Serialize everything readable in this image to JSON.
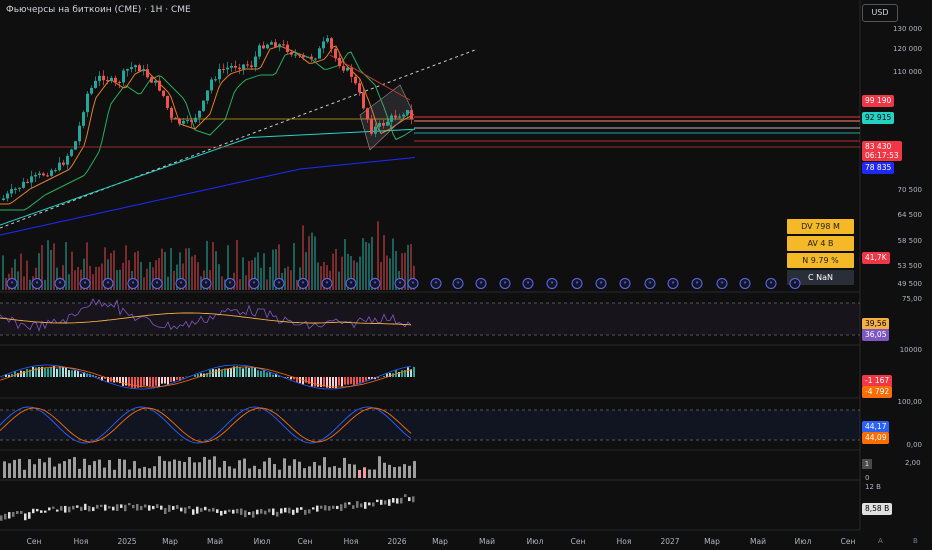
{
  "header": {
    "title": "Фьючерсы на биткоин (CME) · 1H · CME",
    "currency": "USD"
  },
  "price_axis": {
    "ticks": [
      "130 000",
      "120 000",
      "110 000",
      "78 835",
      "70 500",
      "64 500",
      "58 500",
      "53 500",
      "49 500"
    ],
    "labels": [
      {
        "text": "99 190",
        "color": "#f23645"
      },
      {
        "text": "92 915",
        "color": "#22d3c5"
      },
      {
        "text": "83 430",
        "sub": "06:17:53",
        "color": "#f23645"
      },
      {
        "text": "78 835",
        "color": "#1e2aff"
      },
      {
        "text": "41,7K",
        "color": "#f23645"
      }
    ]
  },
  "stats": [
    {
      "text": "DV 798 M"
    },
    {
      "text": "AV 4 B"
    },
    {
      "text": "N 9.79 %"
    },
    {
      "text": "C  NaN"
    }
  ],
  "panes": {
    "rsi": {
      "tick": "75,00",
      "labels": [
        {
          "text": "39,56",
          "color": "#f5b041"
        },
        {
          "text": "36,05",
          "color": "#7e57c2"
        }
      ]
    },
    "macd": {
      "tick": "10000",
      "labels": [
        {
          "text": "-1 167",
          "color": "#f23645"
        },
        {
          "text": "-4 792",
          "color": "#ff6d00"
        }
      ]
    },
    "stoch": {
      "tick_top": "100,00",
      "tick_bottom": "0,00",
      "labels": [
        {
          "text": "44,17",
          "color": "#2962ff"
        },
        {
          "text": "44,09",
          "color": "#ff6d00"
        }
      ]
    },
    "vol2": {
      "badge": "1",
      "value": "2,00",
      "tick": "0"
    },
    "obv": {
      "tick": "12 B",
      "label": "8,58 B"
    }
  },
  "time_axis": {
    "months": [
      {
        "label": "Сен",
        "x": 34
      },
      {
        "label": "Ноя",
        "x": 81
      },
      {
        "label": "2025",
        "x": 127
      },
      {
        "label": "Мар",
        "x": 170
      },
      {
        "label": "Май",
        "x": 215
      },
      {
        "label": "Июл",
        "x": 262
      },
      {
        "label": "Сен",
        "x": 305
      },
      {
        "label": "Ноя",
        "x": 351
      },
      {
        "label": "2026",
        "x": 397
      },
      {
        "label": "Мар",
        "x": 440
      },
      {
        "label": "Май",
        "x": 487
      },
      {
        "label": "Июл",
        "x": 535
      },
      {
        "label": "Сен",
        "x": 578
      },
      {
        "label": "Ноя",
        "x": 624
      },
      {
        "label": "2027",
        "x": 670
      },
      {
        "label": "Мар",
        "x": 712
      },
      {
        "label": "Май",
        "x": 758
      },
      {
        "label": "Июл",
        "x": 803
      },
      {
        "label": "Сен",
        "x": 848
      }
    ],
    "tz_a": "A",
    "tz_b": "B"
  },
  "events": {
    "glyph": "»"
  }
}
